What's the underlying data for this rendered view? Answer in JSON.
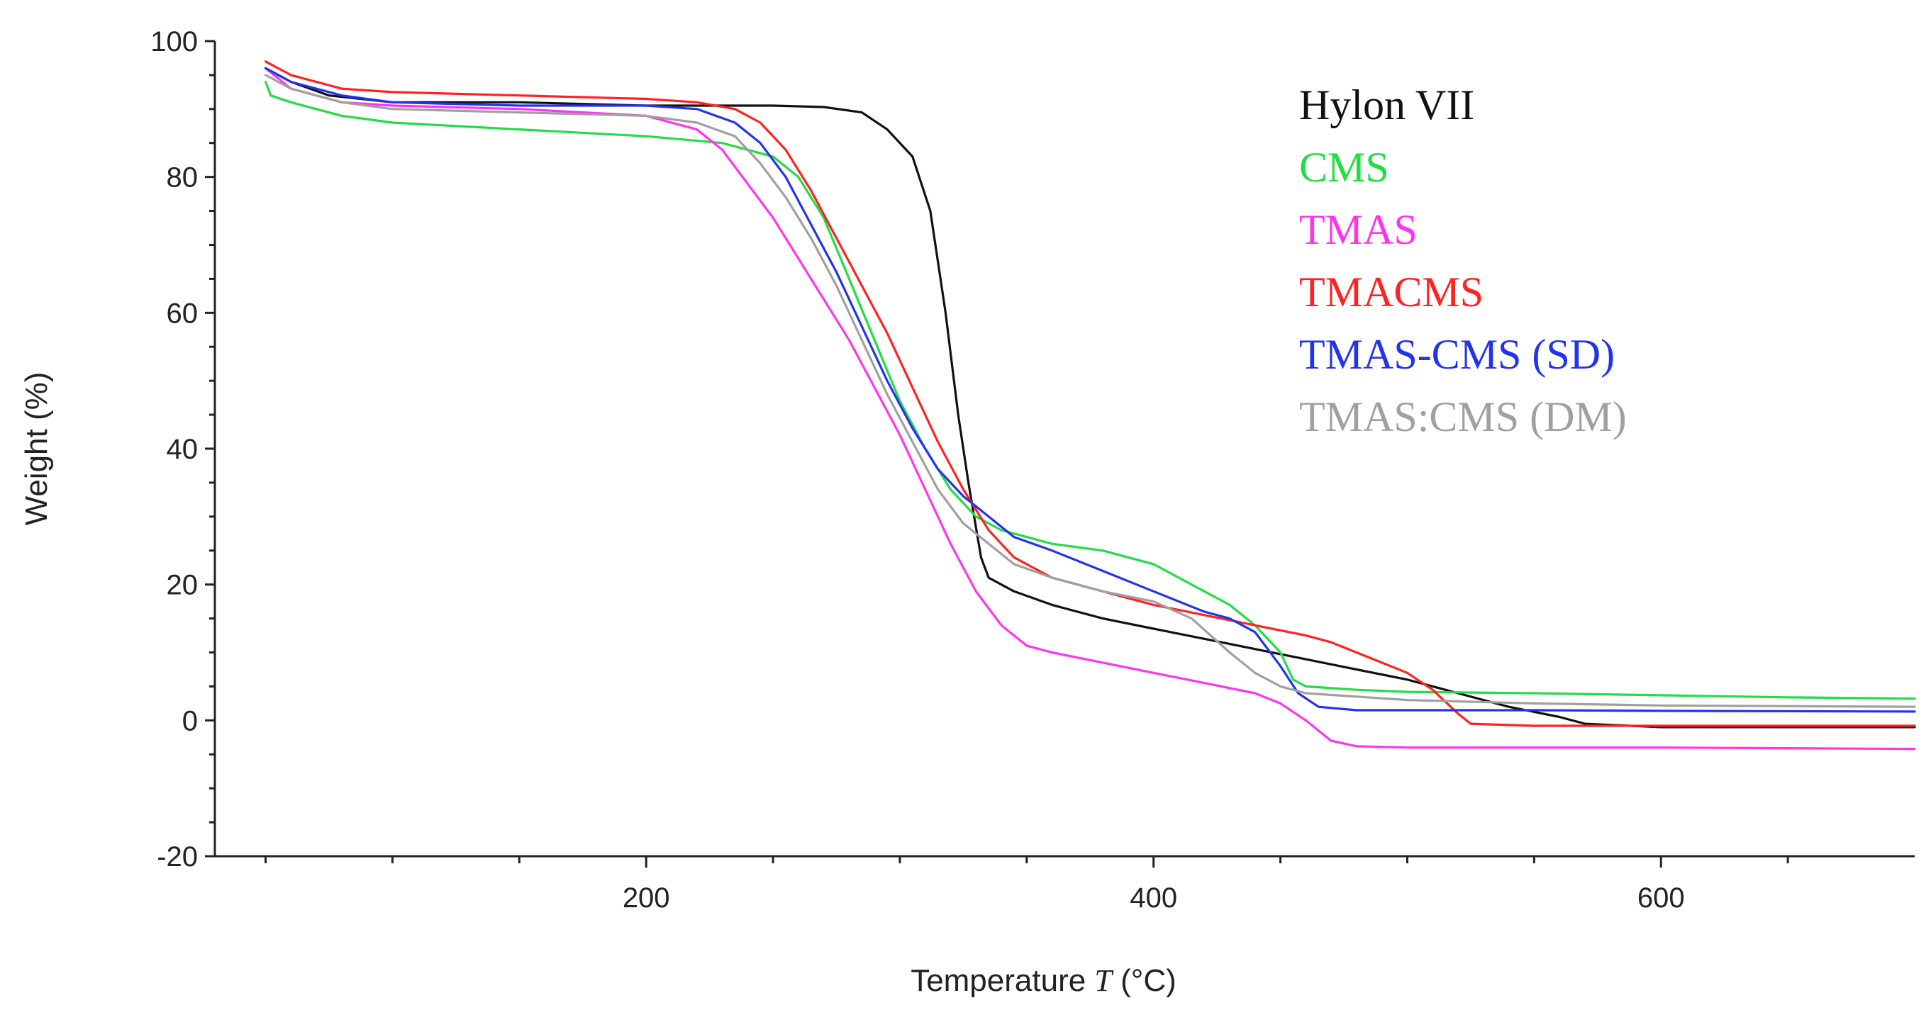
{
  "chart_data": {
    "type": "line",
    "title": "",
    "xlabel_prefix": "Temperature ",
    "xlabel_var": "T",
    "xlabel_suffix": " (°C)",
    "ylabel": "Weight  (%)",
    "xlim": [
      30,
      700
    ],
    "ylim": [
      -20,
      100
    ],
    "x_ticks": [
      200,
      400,
      600
    ],
    "x_minor_ticks": [
      50,
      100,
      150,
      200,
      250,
      300,
      350,
      400,
      450,
      500,
      550,
      600,
      650
    ],
    "y_ticks": [
      -20,
      0,
      20,
      40,
      60,
      80,
      100
    ],
    "y_minor_ticks": [
      -15,
      -10,
      -5,
      5,
      10,
      15,
      25,
      30,
      35,
      45,
      50,
      55,
      65,
      70,
      75,
      85,
      90,
      95
    ],
    "legend_position": "top-right",
    "series": [
      {
        "name": "Hylon VII",
        "color": "#111111",
        "points": [
          [
            50,
            96
          ],
          [
            60,
            94
          ],
          [
            75,
            92
          ],
          [
            100,
            91
          ],
          [
            150,
            91
          ],
          [
            200,
            90.5
          ],
          [
            250,
            90.5
          ],
          [
            270,
            90.3
          ],
          [
            285,
            89.5
          ],
          [
            295,
            87
          ],
          [
            305,
            83
          ],
          [
            312,
            75
          ],
          [
            318,
            60
          ],
          [
            323,
            45
          ],
          [
            327,
            35
          ],
          [
            332,
            24
          ],
          [
            335,
            21
          ],
          [
            345,
            19
          ],
          [
            360,
            17
          ],
          [
            380,
            15
          ],
          [
            400,
            13.5
          ],
          [
            420,
            12
          ],
          [
            440,
            10.5
          ],
          [
            460,
            9
          ],
          [
            480,
            7.5
          ],
          [
            500,
            6
          ],
          [
            520,
            4
          ],
          [
            540,
            2
          ],
          [
            560,
            0.5
          ],
          [
            570,
            -0.5
          ],
          [
            600,
            -1
          ],
          [
            700,
            -1
          ]
        ]
      },
      {
        "name": "CMS",
        "color": "#22dd44",
        "points": [
          [
            50,
            94
          ],
          [
            52,
            92
          ],
          [
            60,
            91
          ],
          [
            80,
            89
          ],
          [
            100,
            88
          ],
          [
            150,
            87
          ],
          [
            200,
            86
          ],
          [
            230,
            85
          ],
          [
            250,
            83
          ],
          [
            260,
            80
          ],
          [
            270,
            74
          ],
          [
            280,
            65
          ],
          [
            290,
            56
          ],
          [
            300,
            47
          ],
          [
            310,
            40
          ],
          [
            320,
            34
          ],
          [
            330,
            30
          ],
          [
            340,
            28
          ],
          [
            350,
            27
          ],
          [
            360,
            26
          ],
          [
            380,
            25
          ],
          [
            400,
            23
          ],
          [
            410,
            21
          ],
          [
            420,
            19
          ],
          [
            430,
            17
          ],
          [
            440,
            14
          ],
          [
            450,
            10
          ],
          [
            455,
            6
          ],
          [
            460,
            5
          ],
          [
            480,
            4.5
          ],
          [
            500,
            4.2
          ],
          [
            550,
            4
          ],
          [
            600,
            3.7
          ],
          [
            650,
            3.4
          ],
          [
            700,
            3.2
          ]
        ]
      },
      {
        "name": "TMAS",
        "color": "#ff33ee",
        "points": [
          [
            50,
            96
          ],
          [
            60,
            93
          ],
          [
            80,
            91
          ],
          [
            100,
            90.5
          ],
          [
            150,
            90
          ],
          [
            200,
            89
          ],
          [
            220,
            87
          ],
          [
            230,
            84
          ],
          [
            240,
            79
          ],
          [
            250,
            74
          ],
          [
            260,
            68
          ],
          [
            270,
            62
          ],
          [
            280,
            56
          ],
          [
            290,
            49
          ],
          [
            300,
            42
          ],
          [
            310,
            34
          ],
          [
            320,
            26
          ],
          [
            330,
            19
          ],
          [
            340,
            14
          ],
          [
            350,
            11
          ],
          [
            360,
            10
          ],
          [
            380,
            8.5
          ],
          [
            400,
            7
          ],
          [
            420,
            5.5
          ],
          [
            440,
            4
          ],
          [
            450,
            2.5
          ],
          [
            460,
            0
          ],
          [
            470,
            -3
          ],
          [
            480,
            -3.8
          ],
          [
            500,
            -4
          ],
          [
            600,
            -4
          ],
          [
            700,
            -4.2
          ]
        ]
      },
      {
        "name": "TMACMS",
        "color": "#ff2222",
        "points": [
          [
            50,
            97
          ],
          [
            60,
            95
          ],
          [
            80,
            93
          ],
          [
            100,
            92.5
          ],
          [
            150,
            92
          ],
          [
            200,
            91.5
          ],
          [
            220,
            91
          ],
          [
            235,
            90
          ],
          [
            245,
            88
          ],
          [
            255,
            84
          ],
          [
            265,
            78
          ],
          [
            275,
            71
          ],
          [
            285,
            64
          ],
          [
            295,
            57
          ],
          [
            305,
            49
          ],
          [
            315,
            41
          ],
          [
            325,
            34
          ],
          [
            335,
            28
          ],
          [
            345,
            24
          ],
          [
            360,
            21
          ],
          [
            380,
            19
          ],
          [
            400,
            17
          ],
          [
            420,
            15.5
          ],
          [
            440,
            14
          ],
          [
            460,
            12.5
          ],
          [
            470,
            11.5
          ],
          [
            480,
            10
          ],
          [
            490,
            8.5
          ],
          [
            500,
            7
          ],
          [
            510,
            4.5
          ],
          [
            520,
            1
          ],
          [
            525,
            -0.5
          ],
          [
            550,
            -0.8
          ],
          [
            600,
            -0.8
          ],
          [
            700,
            -0.8
          ]
        ]
      },
      {
        "name": "TMAS-CMS (SD)",
        "color": "#2233ee",
        "points": [
          [
            50,
            96
          ],
          [
            60,
            94
          ],
          [
            80,
            92
          ],
          [
            100,
            91
          ],
          [
            150,
            90.5
          ],
          [
            200,
            90.5
          ],
          [
            220,
            90
          ],
          [
            235,
            88
          ],
          [
            245,
            85
          ],
          [
            255,
            80
          ],
          [
            265,
            73
          ],
          [
            275,
            66
          ],
          [
            285,
            58
          ],
          [
            295,
            50
          ],
          [
            305,
            43
          ],
          [
            315,
            37
          ],
          [
            325,
            33
          ],
          [
            335,
            30
          ],
          [
            345,
            27
          ],
          [
            360,
            25
          ],
          [
            380,
            22
          ],
          [
            400,
            19
          ],
          [
            420,
            16
          ],
          [
            430,
            15
          ],
          [
            440,
            13
          ],
          [
            450,
            8
          ],
          [
            457,
            4
          ],
          [
            465,
            2
          ],
          [
            480,
            1.5
          ],
          [
            550,
            1.5
          ],
          [
            600,
            1.4
          ],
          [
            700,
            1.3
          ]
        ]
      },
      {
        "name": "TMAS:CMS (DM)",
        "color": "#a0a0a0",
        "points": [
          [
            50,
            95
          ],
          [
            60,
            93
          ],
          [
            80,
            91
          ],
          [
            100,
            90
          ],
          [
            150,
            89.5
          ],
          [
            200,
            89
          ],
          [
            220,
            88
          ],
          [
            235,
            86
          ],
          [
            245,
            82
          ],
          [
            255,
            77
          ],
          [
            265,
            71
          ],
          [
            275,
            64
          ],
          [
            285,
            56
          ],
          [
            295,
            48
          ],
          [
            305,
            41
          ],
          [
            315,
            34
          ],
          [
            325,
            29
          ],
          [
            335,
            26
          ],
          [
            345,
            23
          ],
          [
            360,
            21
          ],
          [
            380,
            19
          ],
          [
            400,
            17.5
          ],
          [
            415,
            15
          ],
          [
            430,
            10
          ],
          [
            440,
            7
          ],
          [
            450,
            5
          ],
          [
            460,
            4
          ],
          [
            480,
            3.5
          ],
          [
            500,
            3
          ],
          [
            550,
            2.5
          ],
          [
            600,
            2.2
          ],
          [
            700,
            2
          ]
        ]
      }
    ]
  }
}
